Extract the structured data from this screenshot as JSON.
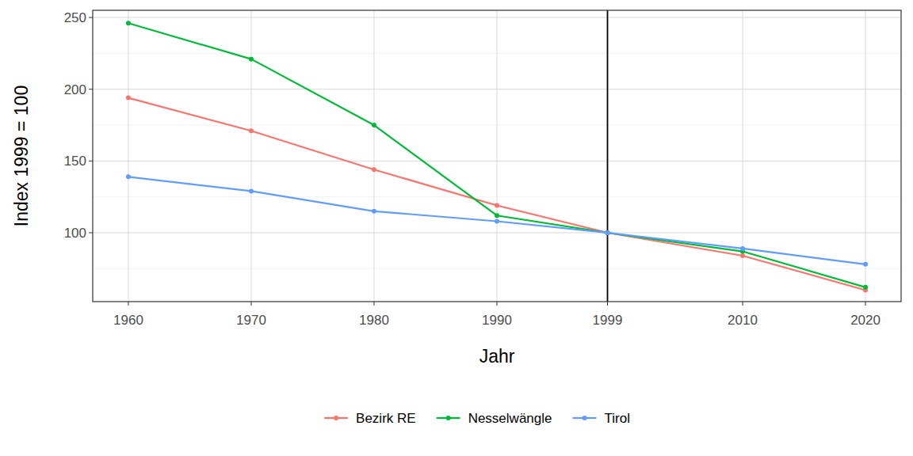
{
  "chart_data": {
    "type": "line",
    "x_label": "Jahr",
    "y_label": "Index 1999 = 100",
    "x": [
      1960,
      1970,
      1980,
      1990,
      1999,
      2010,
      2020
    ],
    "xlim": [
      1957.1,
      2022.9
    ],
    "xticks": [
      1960,
      1970,
      1980,
      1990,
      1999,
      2010,
      2020
    ],
    "ylim": [
      52,
      255
    ],
    "yticks": [
      100,
      150,
      200,
      250
    ],
    "grid": true,
    "legend": "bottom",
    "marker": "circle",
    "vline": 1999,
    "series": [
      {
        "name": "Bezirk RE",
        "color": "#F8766D",
        "values": [
          194,
          171,
          144,
          119,
          100,
          84,
          60
        ]
      },
      {
        "name": "Nesselwängle",
        "color": "#00BA38",
        "values": [
          246,
          221,
          175,
          112,
          100,
          87,
          62
        ]
      },
      {
        "name": "Tirol",
        "color": "#619CFF",
        "values": [
          139,
          129,
          115,
          108,
          100,
          89,
          78
        ]
      }
    ]
  }
}
